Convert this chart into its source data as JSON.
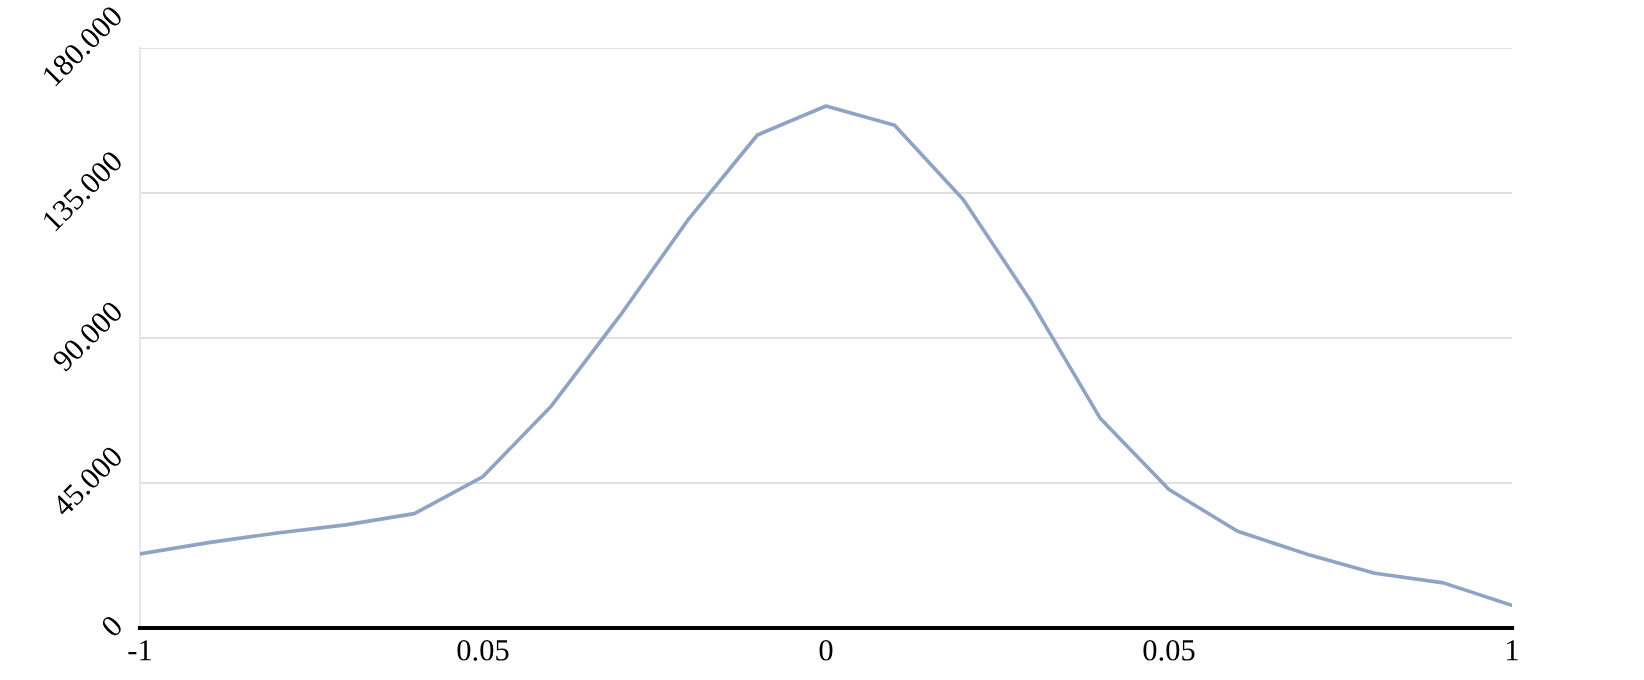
{
  "chart_data": {
    "type": "line",
    "categories": [
      "-1",
      null,
      null,
      null,
      null,
      "0.05",
      null,
      null,
      null,
      null,
      "0",
      null,
      null,
      null,
      null,
      "0.05",
      null,
      null,
      null,
      null,
      "1"
    ],
    "series": [
      {
        "color": "#8fa3c4",
        "values": [
          23,
          26.5,
          29.5,
          32,
          35.5,
          47,
          69,
          97,
          127,
          153,
          162,
          156,
          133,
          101,
          65,
          43,
          30,
          23,
          17,
          14,
          7
        ]
      }
    ],
    "ylim": [
      0,
      180
    ],
    "yticks": [
      0,
      {
        "value": 45,
        "label": "45.000"
      },
      {
        "value": 90,
        "label": "90.000"
      },
      {
        "value": 135,
        "label": "135.000"
      },
      {
        "value": 180,
        "label": "180.000"
      }
    ],
    "grid": "y",
    "marker": "none",
    "line_style": "solid"
  }
}
